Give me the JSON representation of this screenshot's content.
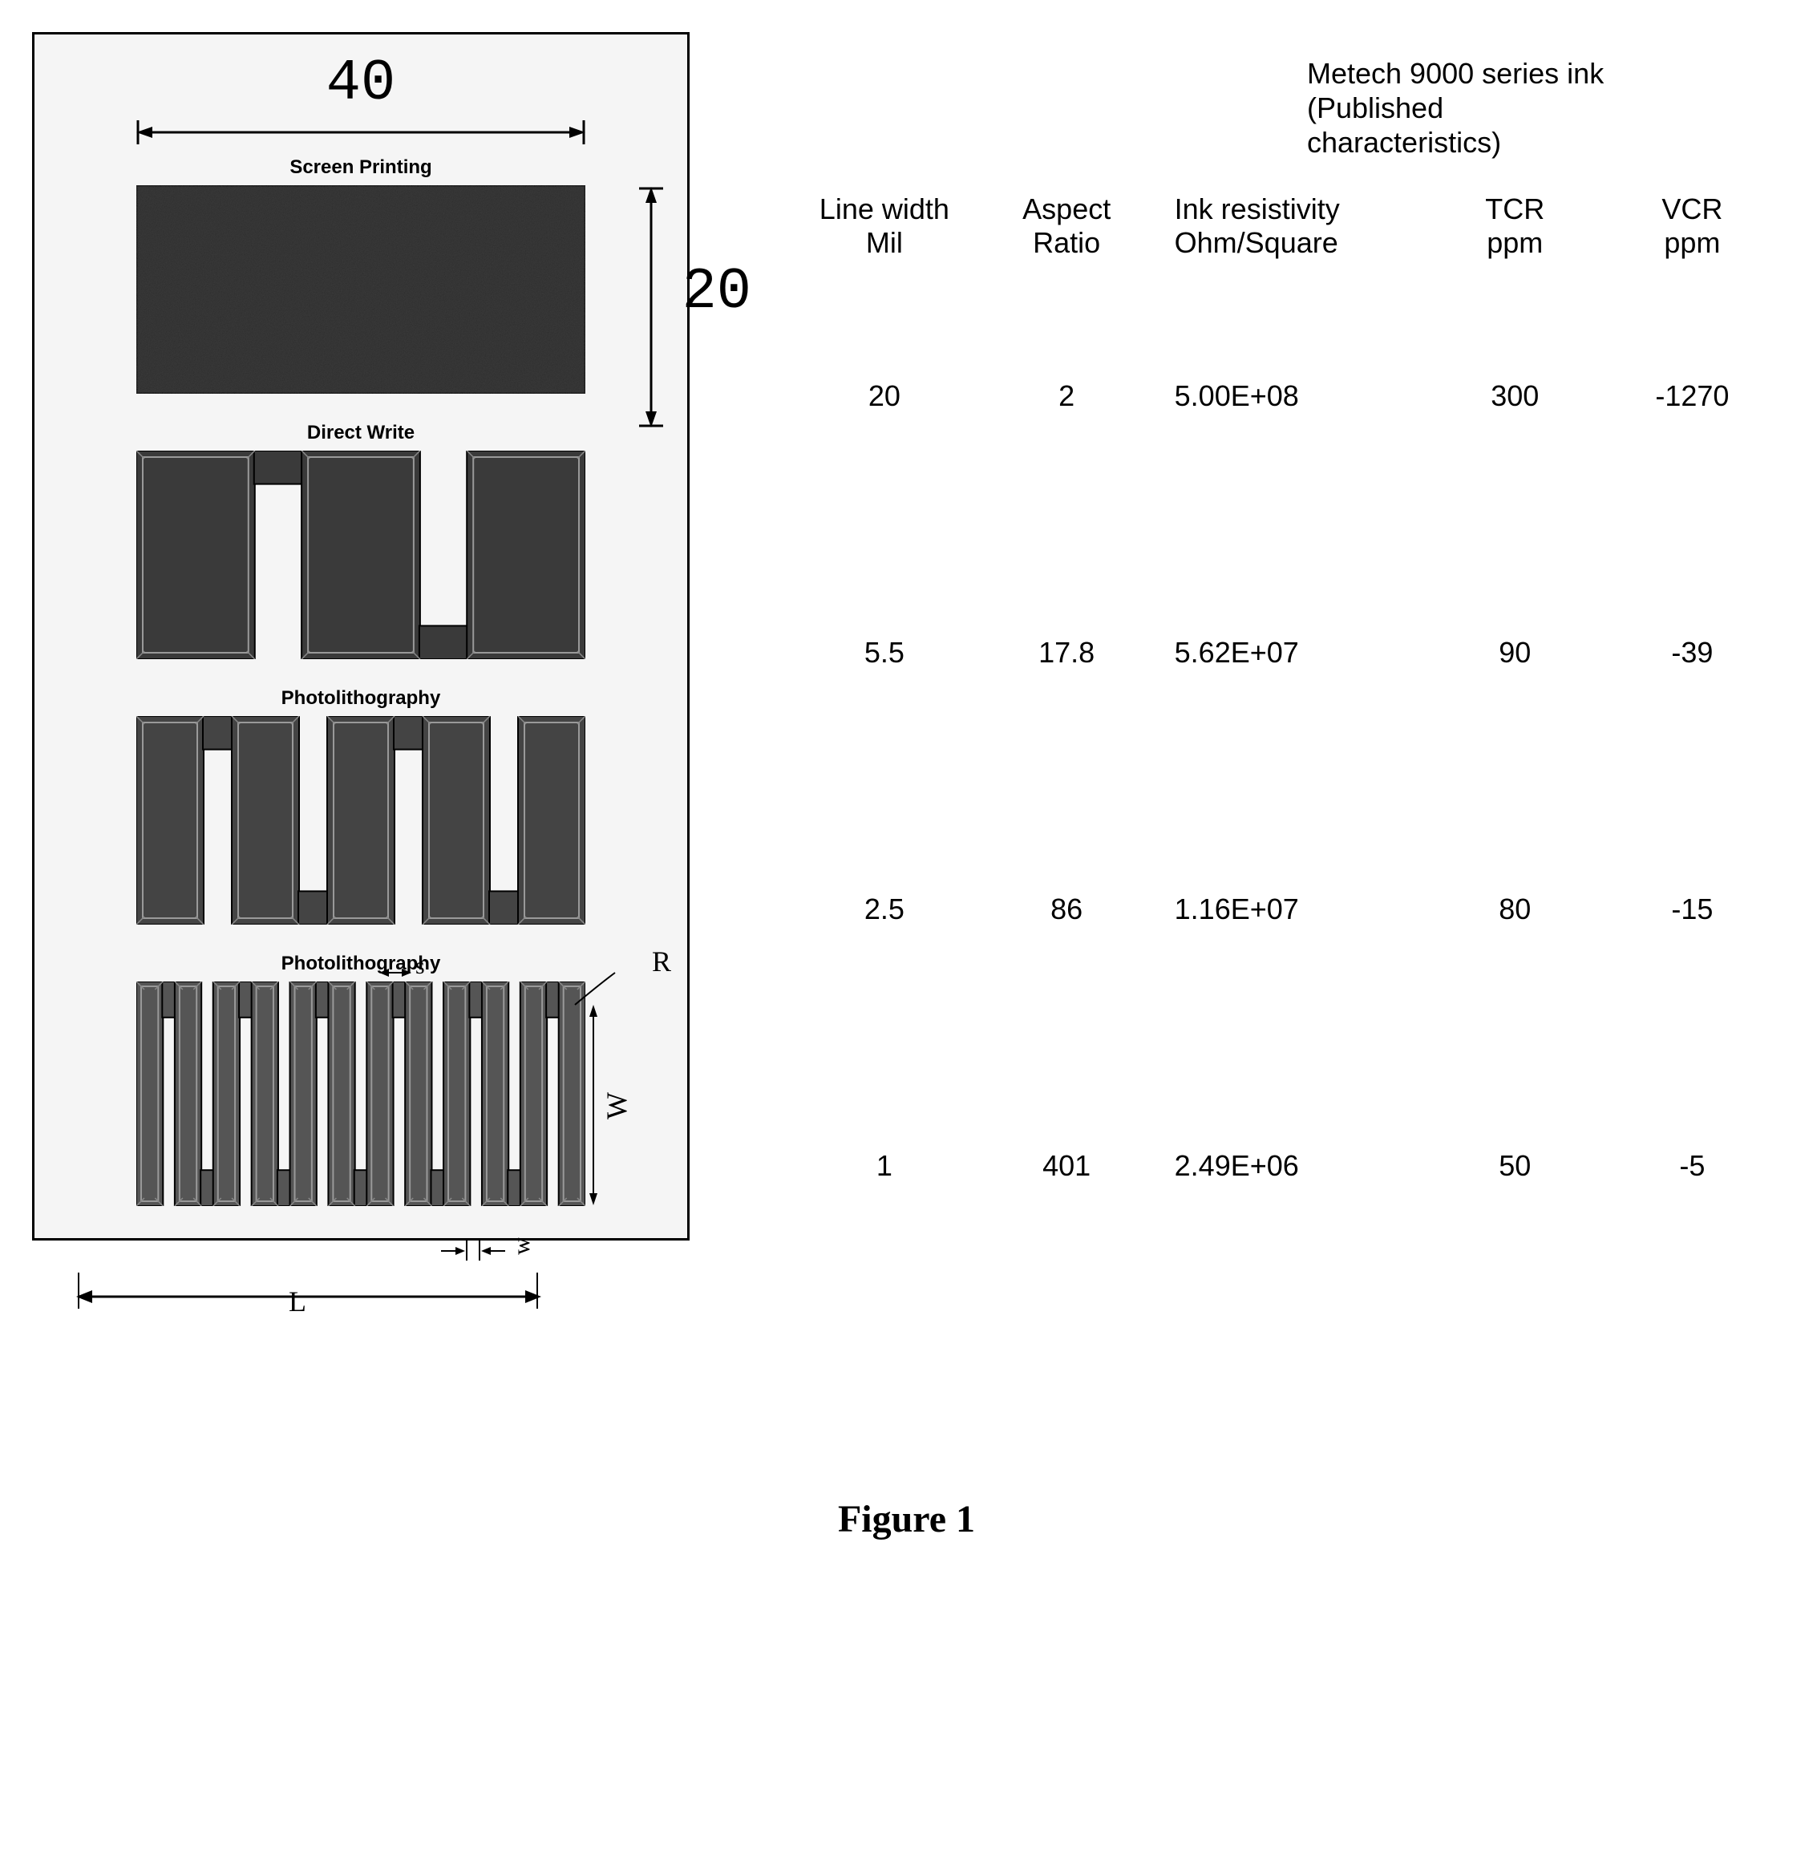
{
  "figure_caption": "Figure 1",
  "diagram": {
    "width_label": "40",
    "height_label": "20",
    "frame_border_color": "#000000",
    "frame_bg": "#f5f5f5",
    "patterns": [
      {
        "label": "Screen Printing",
        "type": "solid",
        "fill": "#2a2a2a"
      },
      {
        "label": "Direct Write",
        "type": "serpentine",
        "segments": 3,
        "fill": "#3a3a3a"
      },
      {
        "label": "Photolithography",
        "type": "serpentine",
        "segments": 5,
        "fill": "#444444"
      },
      {
        "label": "Photolithography",
        "type": "serpentine",
        "segments": 12,
        "fill": "#555555"
      }
    ],
    "annotations": {
      "R": "R",
      "s": "s",
      "L": "L",
      "W": "W",
      "w": "w"
    }
  },
  "table": {
    "title_line1": "Metech 9000 series ink",
    "title_line2": "(Published",
    "title_line3": "characteristics)",
    "headers": {
      "col1_l1": "Line width",
      "col1_l2": "Mil",
      "col2_l1": "Aspect",
      "col2_l2": "Ratio",
      "col3_l1": "Ink resistivity",
      "col3_l2": "Ohm/Square",
      "col4_l1": "TCR",
      "col4_l2": "ppm",
      "col5_l1": "VCR",
      "col5_l2": "ppm"
    },
    "rows": [
      {
        "line_width": "20",
        "aspect_ratio": "2",
        "resistivity": "5.00E+08",
        "tcr": "300",
        "vcr": "-1270"
      },
      {
        "line_width": "5.5",
        "aspect_ratio": "17.8",
        "resistivity": "5.62E+07",
        "tcr": "90",
        "vcr": "-39"
      },
      {
        "line_width": "2.5",
        "aspect_ratio": "86",
        "resistivity": "1.16E+07",
        "tcr": "80",
        "vcr": "-15"
      },
      {
        "line_width": "1",
        "aspect_ratio": "401",
        "resistivity": "2.49E+06",
        "tcr": "50",
        "vcr": "-5"
      }
    ]
  },
  "styles": {
    "text_color": "#000000",
    "arrow_color": "#000000"
  }
}
